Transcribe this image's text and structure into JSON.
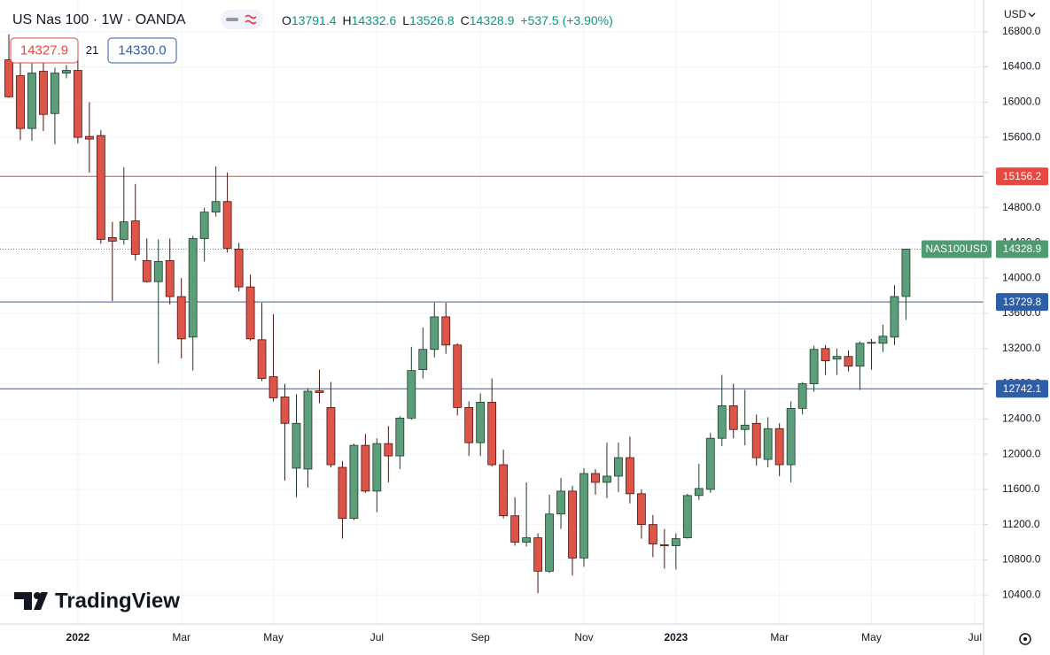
{
  "header": {
    "title": "US Nas 100 · 1W · OANDA",
    "ohlc_labels": [
      "O",
      "H",
      "L",
      "C"
    ],
    "change": "+537.5",
    "change_pct": "(+3.90%)",
    "sell": "14327.9",
    "spread": "21",
    "buy": "14330.0",
    "currency": "USD",
    "logo": "TradingView"
  },
  "chart_data": {
    "type": "candlestick",
    "categories": [
      null,
      null,
      null,
      null,
      null,
      null,
      "2022",
      null,
      null,
      null,
      null,
      null,
      null,
      null,
      null,
      "Mar",
      null,
      null,
      null,
      null,
      null,
      null,
      null,
      "May",
      null,
      null,
      null,
      null,
      null,
      null,
      null,
      null,
      "Jul",
      null,
      null,
      null,
      null,
      null,
      null,
      null,
      null,
      "Sep",
      null,
      null,
      null,
      null,
      null,
      null,
      null,
      null,
      "Nov",
      null,
      null,
      null,
      null,
      null,
      null,
      null,
      "2023",
      null,
      null,
      null,
      null,
      null,
      null,
      null,
      null,
      "Mar",
      null,
      null,
      null,
      null,
      null,
      null,
      null,
      "May",
      null,
      null,
      null,
      null,
      null,
      null,
      null,
      null,
      "Jul"
    ],
    "open": [
      16480,
      16300,
      15700,
      16350,
      15870,
      16330,
      16360,
      15610,
      15620,
      14460,
      14440,
      14650,
      14200,
      13960,
      14200,
      13790,
      13330,
      14450,
      14750,
      14870,
      14330,
      13900,
      13300,
      12880,
      12650,
      11840,
      11830,
      12720,
      12530,
      11850,
      11270,
      12100,
      11580,
      12120,
      11980,
      12410,
      12960,
      13190,
      13560,
      13240,
      12530,
      12130,
      12590,
      11880,
      11300,
      11000,
      11050,
      10670,
      11320,
      11580,
      10820,
      11780,
      11680,
      11750,
      11960,
      11550,
      11200,
      10970,
      10960,
      11050,
      11530,
      11600,
      12180,
      12550,
      12280,
      12350,
      11940,
      12290,
      11880,
      12520,
      12800,
      13200,
      13080,
      13110,
      13000,
      13260,
      13260,
      13330,
      13791.4,
      null,
      null,
      null,
      null,
      null,
      null
    ],
    "high": [
      16770,
      16510,
      16440,
      16450,
      16390,
      16420,
      16480,
      16000,
      15680,
      14640,
      15260,
      15070,
      14450,
      14440,
      14450,
      14000,
      14480,
      14800,
      15270,
      15200,
      14400,
      14040,
      13720,
      13590,
      12800,
      12680,
      12750,
      12960,
      12820,
      11920,
      12120,
      12230,
      12180,
      12320,
      12430,
      13220,
      13440,
      13720,
      13720,
      13260,
      12600,
      12690,
      12860,
      12050,
      11510,
      11680,
      11100,
      11540,
      11730,
      11640,
      11840,
      11830,
      12130,
      12130,
      12200,
      11600,
      11310,
      11150,
      11100,
      11550,
      11890,
      12240,
      12900,
      12800,
      12730,
      12450,
      12420,
      12350,
      12600,
      12820,
      13230,
      13240,
      13200,
      13180,
      13280,
      13310,
      13470,
      13920,
      14332.6,
      null,
      null,
      null,
      null,
      null,
      null
    ],
    "low": [
      16050,
      15570,
      15560,
      15670,
      15520,
      16270,
      15530,
      15200,
      14390,
      13740,
      14380,
      14200,
      13950,
      13030,
      13700,
      13090,
      12950,
      14190,
      14700,
      14290,
      13850,
      13290,
      12830,
      12600,
      11700,
      11510,
      11620,
      12580,
      11850,
      11040,
      11250,
      11560,
      11340,
      11680,
      11830,
      12390,
      12860,
      13100,
      13140,
      12440,
      11980,
      11980,
      11860,
      11270,
      10960,
      10950,
      10420,
      10650,
      11150,
      10620,
      10720,
      11540,
      11500,
      11570,
      11440,
      11040,
      10830,
      10700,
      10690,
      11040,
      11480,
      11560,
      12090,
      12180,
      12100,
      11870,
      11850,
      11750,
      11680,
      12450,
      12710,
      12900,
      12900,
      12940,
      12730,
      12960,
      13160,
      13240,
      13526.8,
      null,
      null,
      null,
      null,
      null,
      null
    ],
    "close": [
      16060,
      15700,
      16330,
      15860,
      16330,
      16360,
      15600,
      15580,
      14440,
      14420,
      14640,
      14270,
      13960,
      14190,
      13790,
      13310,
      14450,
      14750,
      14870,
      14340,
      13900,
      13310,
      12860,
      12640,
      12350,
      12350,
      12715,
      12700,
      11880,
      11270,
      12100,
      11580,
      12120,
      11980,
      12410,
      12950,
      13190,
      13560,
      13240,
      12530,
      12130,
      12590,
      11880,
      11300,
      11000,
      11050,
      10670,
      11320,
      11580,
      10820,
      11780,
      11680,
      11750,
      11960,
      11550,
      11200,
      10980,
      10960,
      11040,
      11530,
      11610,
      12180,
      12550,
      12280,
      12330,
      11960,
      12290,
      11880,
      12520,
      12800,
      13190,
      13060,
      13110,
      13000,
      13260,
      13270,
      13340,
      13791,
      14328.9,
      null,
      null,
      null,
      null,
      null,
      null
    ],
    "up_color": "#5d9e7a",
    "down_color": "#dd5449",
    "ylim": [
      10070,
      17160
    ],
    "yticks": [
      {
        "value": 10400,
        "label": "10400.0"
      },
      {
        "value": 10800,
        "label": "10800.0"
      },
      {
        "value": 11200,
        "label": "11200.0"
      },
      {
        "value": 11600,
        "label": "11600.0"
      },
      {
        "value": 12000,
        "label": "12000.0"
      },
      {
        "value": 12400,
        "label": "12400.0"
      },
      {
        "value": 12800,
        "label": "12800.0"
      },
      {
        "value": 13200,
        "label": "13200.0"
      },
      {
        "value": 13600,
        "label": "13600.0"
      },
      {
        "value": 14000,
        "label": "14000.0"
      },
      {
        "value": 14400,
        "label": "14400.0"
      },
      {
        "value": 14800,
        "label": "14800.0"
      },
      {
        "value": 15200,
        "label": "15200.0"
      },
      {
        "value": 15600,
        "label": "15600.0"
      },
      {
        "value": 16000,
        "label": "16000.0"
      },
      {
        "value": 16400,
        "label": "16400.0"
      },
      {
        "value": 16800,
        "label": "16800.0"
      }
    ],
    "grid": true,
    "hlines": [
      {
        "value": 15156.2,
        "color": "#e8473f"
      },
      {
        "value": 13729.8,
        "color": "#2f5ea8"
      },
      {
        "value": 12742.1,
        "color": "#2f5ea8"
      }
    ],
    "symbol_label": "NAS100USD",
    "last_price_color": "#4f9a70"
  }
}
